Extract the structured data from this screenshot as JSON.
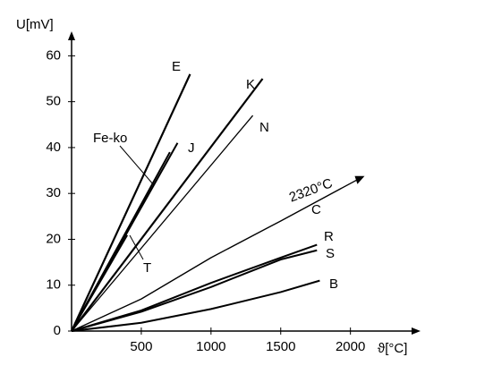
{
  "chart_data": {
    "type": "line",
    "xlabel": "ϑ[°C]",
    "ylabel": "U[mV]",
    "xlim": [
      0,
      2400
    ],
    "xticks": [
      500,
      1000,
      1500,
      2000
    ],
    "ylim": [
      0,
      63
    ],
    "yticks": [
      0,
      10,
      20,
      30,
      40,
      50,
      60
    ],
    "annotations": [
      "2320°C"
    ],
    "series": [
      {
        "name": "E",
        "color": "#000000",
        "x": [
          0,
          850
        ],
        "values": [
          0,
          56
        ]
      },
      {
        "name": "K",
        "color": "#000000",
        "x": [
          0,
          1370
        ],
        "values": [
          0,
          55
        ]
      },
      {
        "name": "N",
        "color": "#000000",
        "x": [
          0,
          1300
        ],
        "values": [
          0,
          47
        ]
      },
      {
        "name": "J",
        "color": "#000000",
        "x": [
          0,
          760
        ],
        "values": [
          0,
          41
        ]
      },
      {
        "name": "Fe-ko",
        "color": "#000000",
        "x": [
          0,
          705
        ],
        "values": [
          0,
          39
        ]
      },
      {
        "name": "T",
        "color": "#000000",
        "x": [
          0,
          400
        ],
        "values": [
          0,
          20.9
        ]
      },
      {
        "name": "C",
        "color": "#000000",
        "x": [
          0,
          500,
          1000,
          1500,
          2050
        ],
        "values": [
          0,
          7,
          16,
          24,
          33
        ]
      },
      {
        "name": "R",
        "color": "#000000",
        "x": [
          0,
          500,
          1000,
          1500,
          1760
        ],
        "values": [
          0,
          4.5,
          10.5,
          16,
          18.8
        ]
      },
      {
        "name": "S",
        "color": "#000000",
        "x": [
          0,
          500,
          1000,
          1500,
          1760
        ],
        "values": [
          0,
          4.2,
          9.6,
          15.6,
          17.6
        ]
      },
      {
        "name": "B",
        "color": "#000000",
        "x": [
          0,
          500,
          1000,
          1500,
          1780
        ],
        "values": [
          0,
          1.8,
          4.8,
          8.5,
          11
        ]
      }
    ]
  }
}
